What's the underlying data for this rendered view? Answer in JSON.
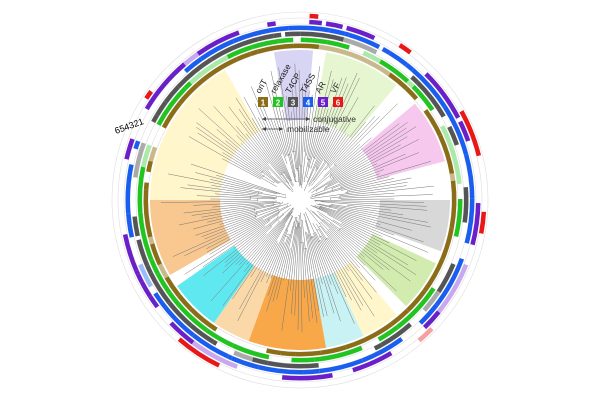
{
  "ring_labels": "654321",
  "legend": [
    {
      "num": "1",
      "label": "oriT",
      "color": "#8a6d16"
    },
    {
      "num": "2",
      "label": "relaxase",
      "color": "#22c422"
    },
    {
      "num": "3",
      "label": "T4CP",
      "color": "#555555"
    },
    {
      "num": "4",
      "label": "T4SS",
      "color": "#1a5ef0"
    },
    {
      "num": "5",
      "label": "AR",
      "color": "#6a1fc8"
    },
    {
      "num": "6",
      "label": "VF",
      "color": "#e81818"
    }
  ],
  "arrows": {
    "conjugative": "conjugative",
    "mobilizable": "mobilizable"
  }
}
